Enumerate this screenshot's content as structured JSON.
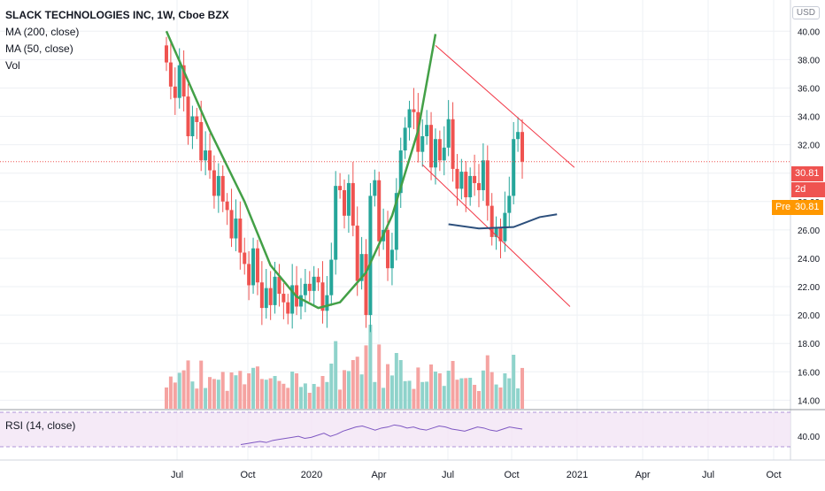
{
  "legend": {
    "title": "SLACK TECHNOLOGIES INC, 1W, Cboe BZX",
    "ma200": "MA (200, close)",
    "ma50": "MA (50, close)",
    "vol": "Vol"
  },
  "rsi": {
    "label": "RSI (14, close)",
    "tick": "40.00"
  },
  "currency": "USD",
  "badges": {
    "price": "30.81",
    "countdown": "2d 11h",
    "pre_label": "Pre",
    "pre_price": "30.81"
  },
  "colors": {
    "up": "#26a69a",
    "down": "#ef5350",
    "up_vol": "#8fd3cb",
    "down_vol": "#f5a3a1",
    "cup": "#43a047",
    "channel": "#f23645",
    "ma": "#2c4f7c",
    "rsi": "#7e57c2",
    "pre": "#ff9800",
    "grid": "#eef0f4"
  },
  "chart_data": {
    "type": "candlestick",
    "y_ticks": [
      14,
      16,
      18,
      20,
      22,
      24,
      26,
      28,
      30,
      32,
      34,
      36,
      38,
      40
    ],
    "y_tick_labels": [
      "14.00",
      "16.00",
      "18.00",
      "20.00",
      "22.00",
      "24.00",
      "26.00",
      "28.00",
      "30.00",
      "32.00",
      "34.00",
      "36.00",
      "38.00",
      "40.00"
    ],
    "ylim": [
      13.4,
      42.2
    ],
    "x_ticks": [
      "Jul",
      "Oct",
      "2020",
      "Apr",
      "Jul",
      "Oct",
      "2021",
      "Apr",
      "Jul",
      "Oct"
    ],
    "last_price": 30.81,
    "candle_closes": [
      37.8,
      36.1,
      35.3,
      37.6,
      35.4,
      32.6,
      34.0,
      33.6,
      30.9,
      31.6,
      30.2,
      28.4,
      29.8,
      28.0,
      27.4,
      25.4,
      26.8,
      24.4,
      23.6,
      22.1,
      24.7,
      22.3,
      20.5,
      21.9,
      20.7,
      22.7,
      21.5,
      20.9,
      20.1,
      22.1,
      20.6,
      21.4,
      22.2,
      21.7,
      22.7,
      22.3,
      20.3,
      21.4,
      23.9,
      29.1,
      28.8,
      27.0,
      29.3,
      26.3,
      22.4,
      24.3,
      20.0,
      28.4,
      29.5,
      25.2,
      26.0,
      23.3,
      24.6,
      28.6,
      31.6,
      33.2,
      34.5,
      34.3,
      31.5,
      32.6,
      33.4,
      30.4,
      32.4,
      30.9,
      31.8,
      33.8,
      30.3,
      28.9,
      30.1,
      28.3,
      29.8,
      29.3,
      28.8,
      30.9,
      27.7,
      25.5,
      26.2,
      25.2,
      27.2,
      28.4,
      32.4,
      32.9,
      30.81
    ],
    "volume_series": "Vol",
    "ma_series": [
      {
        "name": "MA (50, close)",
        "points": [
          [
            65,
            26.4
          ],
          [
            72,
            26.1
          ],
          [
            80,
            26.2
          ],
          [
            86,
            26.9
          ],
          [
            90,
            27.1
          ]
        ]
      }
    ],
    "overlays": [
      {
        "type": "cup",
        "points": [
          [
            0,
            40
          ],
          [
            10,
            33
          ],
          [
            18,
            28
          ],
          [
            24,
            23.5
          ],
          [
            30,
            21.3
          ],
          [
            35,
            20.5
          ],
          [
            40,
            20.9
          ],
          [
            46,
            23
          ],
          [
            52,
            27
          ],
          [
            58,
            33
          ],
          [
            62,
            39.8
          ]
        ]
      },
      {
        "type": "channel",
        "upper": [
          [
            62,
            39
          ],
          [
            94,
            30.4
          ]
        ],
        "lower": [
          [
            59,
            30.6
          ],
          [
            93,
            20.6
          ]
        ]
      }
    ],
    "rsi_series": [
      35,
      36,
      37,
      38,
      37,
      39,
      40,
      41,
      42,
      43,
      41,
      42,
      44,
      46,
      43,
      45,
      48,
      50,
      52,
      53,
      51,
      49,
      51,
      52,
      54,
      53,
      51,
      52,
      50,
      49,
      51,
      53,
      52,
      50,
      49,
      48,
      50,
      52,
      51,
      49,
      48,
      50,
      52,
      51,
      50
    ],
    "grid": true
  }
}
